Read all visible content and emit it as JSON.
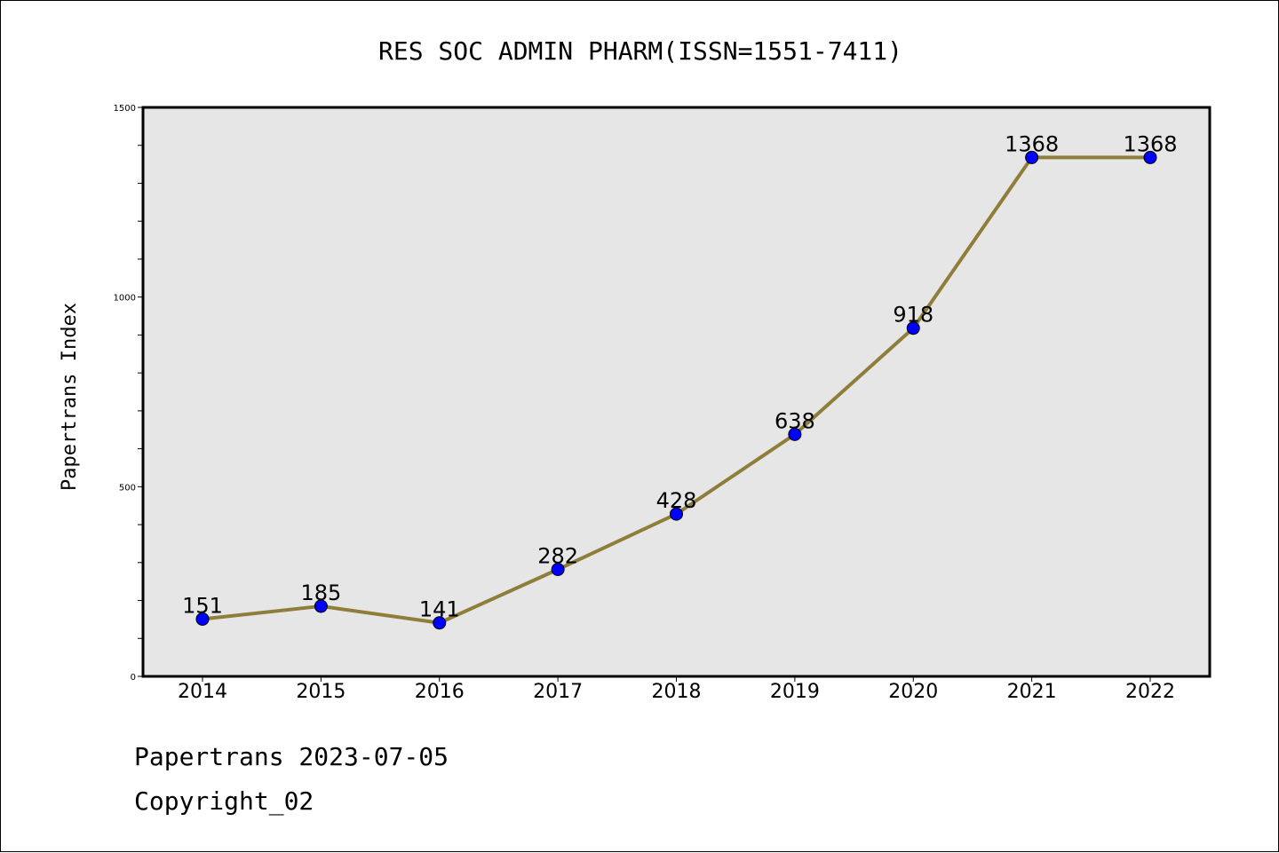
{
  "chart_data": {
    "type": "line",
    "title": "RES SOC ADMIN PHARM(ISSN=1551-7411)",
    "xlabel": "",
    "ylabel": "Papertrans Index",
    "categories": [
      "2014",
      "2015",
      "2016",
      "2017",
      "2018",
      "2019",
      "2020",
      "2021",
      "2022"
    ],
    "values": [
      151,
      185,
      141,
      282,
      428,
      638,
      918,
      1368,
      1368
    ],
    "data_labels": [
      "151",
      "185",
      "141",
      "282",
      "428",
      "638",
      "918",
      "1368",
      "1368"
    ],
    "ylim": [
      0,
      1500
    ],
    "yticks": [
      0,
      500,
      1000,
      1500
    ],
    "ytick_labels": [
      "0",
      "500",
      "1000",
      "1500"
    ],
    "grid": false,
    "line_color": "#8f7e3a",
    "marker_color": "#0000ff",
    "plot_background": "#e6e6e6"
  },
  "footer": {
    "line1": "Papertrans 2023-07-05",
    "line2": "Copyright_02"
  }
}
